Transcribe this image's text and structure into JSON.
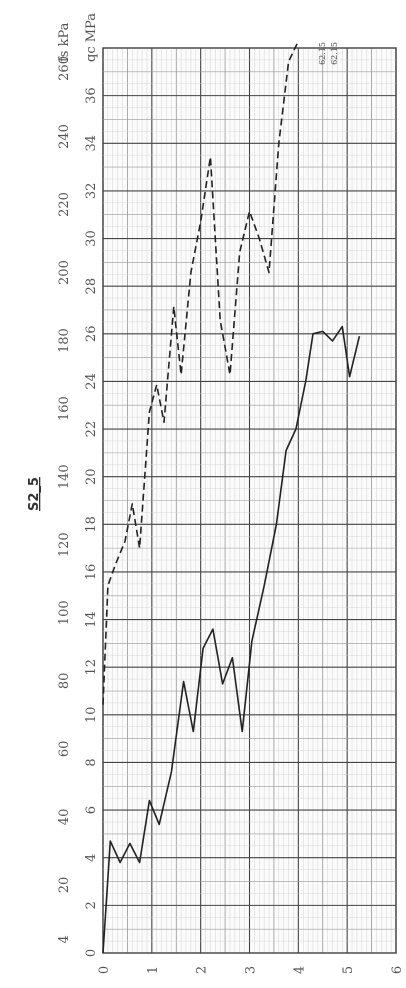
{
  "chart_data": {
    "type": "line",
    "title": "S2_5",
    "orientation": "rotated: depth runs along the bottom edge, values rise upward; text reads sideways",
    "depth_axis": {
      "ticks": [
        "0",
        "1",
        "2",
        "3",
        "4",
        "5",
        "6"
      ],
      "range": [
        0,
        6
      ]
    },
    "qc_axis": {
      "unit_label": "qc MPa",
      "ticks": [
        "0",
        "2",
        "4",
        "6",
        "8",
        "10",
        "12",
        "14",
        "16",
        "18",
        "20",
        "22",
        "24",
        "26",
        "28",
        "30",
        "32",
        "34",
        "36"
      ],
      "range": [
        0,
        38
      ]
    },
    "fs_axis": {
      "unit_label": "fs kPa",
      "ticks": [
        "4",
        "20",
        "40",
        "60",
        "80",
        "100",
        "120",
        "140",
        "160",
        "180",
        "200",
        "220",
        "240",
        "260"
      ],
      "range": [
        0,
        266
      ]
    },
    "grid": true,
    "series": [
      {
        "key": "qc",
        "style": "solid",
        "axis": "qc",
        "points": [
          [
            0.0,
            0.0
          ],
          [
            0.15,
            4.7
          ],
          [
            0.35,
            3.8
          ],
          [
            0.55,
            4.6
          ],
          [
            0.75,
            3.8
          ],
          [
            0.95,
            6.4
          ],
          [
            1.15,
            5.4
          ],
          [
            1.4,
            7.6
          ],
          [
            1.65,
            11.4
          ],
          [
            1.85,
            9.3
          ],
          [
            2.05,
            12.8
          ],
          [
            2.25,
            13.6
          ],
          [
            2.45,
            11.3
          ],
          [
            2.65,
            12.4
          ],
          [
            2.85,
            9.3
          ],
          [
            3.05,
            13.1
          ],
          [
            3.3,
            15.4
          ],
          [
            3.55,
            18.0
          ],
          [
            3.75,
            21.1
          ],
          [
            3.95,
            22.0
          ],
          [
            4.15,
            24.0
          ],
          [
            4.3,
            26.0
          ],
          [
            4.5,
            26.1
          ],
          [
            4.7,
            25.7
          ],
          [
            4.9,
            26.3
          ],
          [
            5.05,
            24.2
          ],
          [
            5.25,
            25.9
          ]
        ]
      },
      {
        "key": "fs",
        "style": "dashed",
        "axis": "fs",
        "points": [
          [
            0.0,
            73
          ],
          [
            0.1,
            108
          ],
          [
            0.25,
            114
          ],
          [
            0.45,
            121
          ],
          [
            0.6,
            132
          ],
          [
            0.75,
            119
          ],
          [
            0.95,
            159
          ],
          [
            1.1,
            167
          ],
          [
            1.25,
            156
          ],
          [
            1.45,
            190
          ],
          [
            1.6,
            170
          ],
          [
            1.8,
            200
          ],
          [
            2.0,
            215
          ],
          [
            2.2,
            234
          ],
          [
            2.4,
            186
          ],
          [
            2.6,
            170
          ],
          [
            2.8,
            206
          ],
          [
            3.0,
            218
          ],
          [
            3.2,
            210
          ],
          [
            3.4,
            200
          ],
          [
            3.6,
            238
          ],
          [
            3.8,
            262
          ],
          [
            4.0,
            268
          ]
        ]
      }
    ],
    "series_tags": [
      "62.15",
      "62.15"
    ]
  }
}
